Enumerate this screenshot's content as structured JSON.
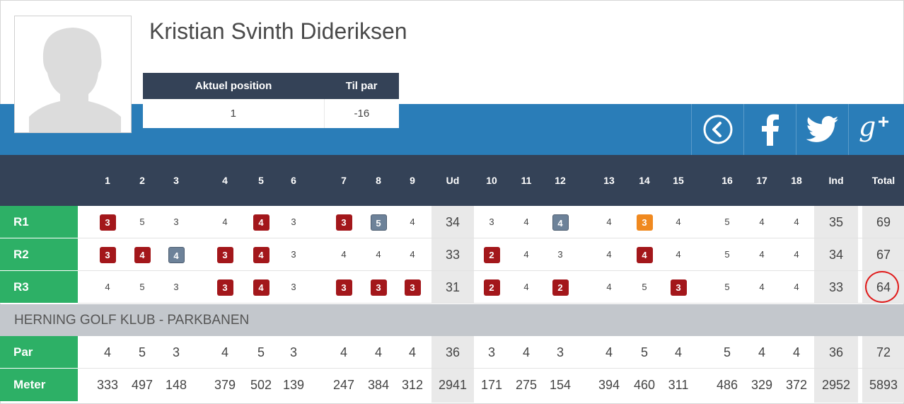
{
  "player": {
    "name": "Kristian Svinth Dideriksen"
  },
  "position_table": {
    "headers": [
      "Aktuel position",
      "Til par"
    ],
    "values": [
      "1",
      "-16"
    ]
  },
  "socials": [
    {
      "name": "back-icon",
      "glyph": "❮"
    },
    {
      "name": "facebook-icon",
      "glyph": "f"
    },
    {
      "name": "twitter-icon",
      "glyph": "🐦"
    },
    {
      "name": "google-plus-icon",
      "glyph": "g+"
    }
  ],
  "columns": [
    "1",
    "2",
    "3",
    "4",
    "5",
    "6",
    "7",
    "8",
    "9",
    "Ud",
    "10",
    "11",
    "12",
    "13",
    "14",
    "15",
    "16",
    "17",
    "18",
    "Ind",
    "Total"
  ],
  "rounds": [
    {
      "label": "R1",
      "scores": [
        "3",
        "5",
        "3",
        "4",
        "4",
        "3",
        "3",
        "5",
        "4",
        "34",
        "3",
        "4",
        "4",
        "4",
        "3",
        "4",
        "5",
        "4",
        "4",
        "35",
        "69"
      ]
    },
    {
      "label": "R2",
      "scores": [
        "3",
        "4",
        "4",
        "3",
        "4",
        "3",
        "4",
        "4",
        "4",
        "33",
        "2",
        "4",
        "3",
        "4",
        "4",
        "4",
        "5",
        "4",
        "4",
        "34",
        "67"
      ]
    },
    {
      "label": "R3",
      "scores": [
        "4",
        "5",
        "3",
        "3",
        "4",
        "3",
        "3",
        "3",
        "3",
        "31",
        "2",
        "4",
        "2",
        "4",
        "5",
        "3",
        "5",
        "4",
        "4",
        "33",
        "64"
      ]
    }
  ],
  "course": {
    "name": "HERNING GOLF KLUB - PARKBANEN"
  },
  "par_row": {
    "label": "Par",
    "values": [
      "4",
      "5",
      "3",
      "4",
      "5",
      "3",
      "4",
      "4",
      "4",
      "36",
      "3",
      "4",
      "3",
      "4",
      "5",
      "4",
      "5",
      "4",
      "4",
      "36",
      "72"
    ]
  },
  "meter_row": {
    "label": "Meter",
    "values": [
      "333",
      "497",
      "148",
      "379",
      "502",
      "139",
      "247",
      "384",
      "312",
      "2941",
      "171",
      "275",
      "154",
      "394",
      "460",
      "311",
      "486",
      "329",
      "372",
      "2952",
      "5893"
    ]
  },
  "colors": {
    "birdie": "#a3171b",
    "bogey": "#6d8299",
    "eagle": "#f0891f",
    "green": "#2db066",
    "header": "#344257",
    "blue": "#2a7db8"
  },
  "highlight": {
    "cell": "R3-Total"
  }
}
